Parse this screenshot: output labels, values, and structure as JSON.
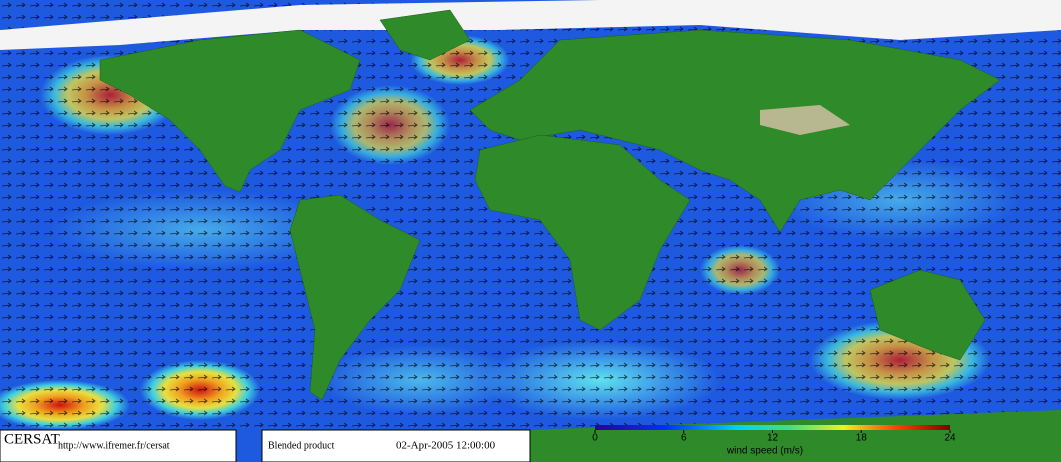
{
  "footer": {
    "logo": "CERSAT",
    "url": "http://www.ifremer.fr/cersat",
    "product": "Blended product",
    "datetime": "02-Apr-2005 12:00:00"
  },
  "colorbar": {
    "label": "wind speed (m/s)",
    "range": [
      0,
      24
    ],
    "ticks": [
      0,
      6,
      12,
      18,
      24
    ]
  }
}
